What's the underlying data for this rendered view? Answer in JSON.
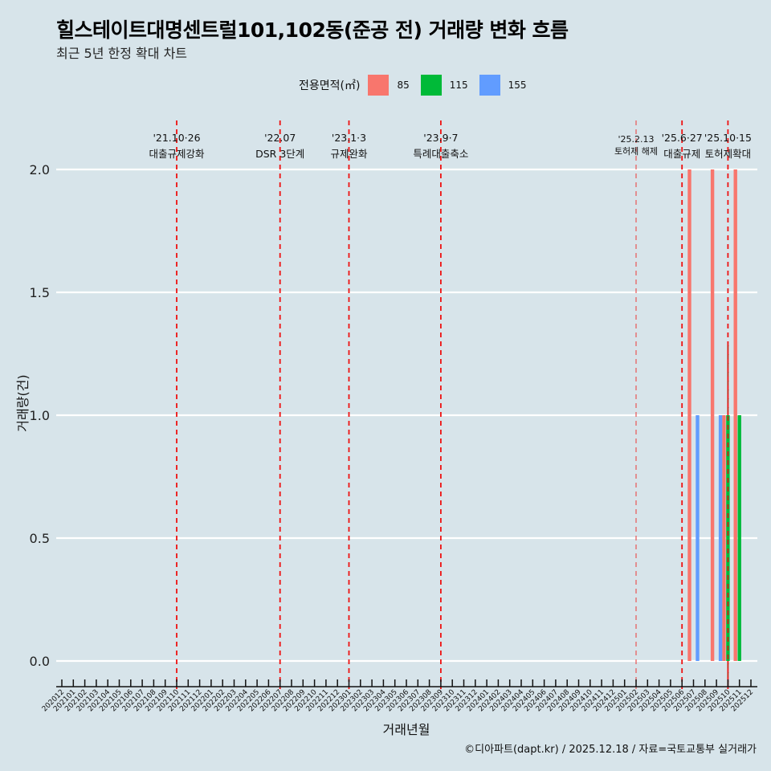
{
  "title": "힐스테이트대명센트럴101,102동(준공 전) 거래량 변화 흐름",
  "subtitle": "최근 5년 한정 확대 차트",
  "caption": "©디아파트(dapt.kr) / 2025.12.18 / 자료=국토교통부 실거래가",
  "legend": {
    "title": "전용면적(㎡)",
    "items": [
      {
        "label": "85",
        "color": "#F8766D"
      },
      {
        "label": "115",
        "color": "#00BA38"
      },
      {
        "label": "155",
        "color": "#619CFF"
      }
    ]
  },
  "chart_data": {
    "type": "bar",
    "title": "힐스테이트대명센트럴101,102동(준공 전) 거래량 변화 흐름",
    "xlabel": "거래년월",
    "ylabel": "거래량(건)",
    "ylim": [
      0,
      2
    ],
    "yticks": [
      "0.0",
      "0.5",
      "1.0",
      "1.5",
      "2.0"
    ],
    "ytick_values": [
      0,
      0.5,
      1,
      1.5,
      2
    ],
    "categories": [
      "202012",
      "202101",
      "202102",
      "202103",
      "202104",
      "202105",
      "202106",
      "202107",
      "202108",
      "202109",
      "202110",
      "202111",
      "202112",
      "202201",
      "202202",
      "202203",
      "202204",
      "202205",
      "202206",
      "202207",
      "202208",
      "202209",
      "202210",
      "202211",
      "202212",
      "202301",
      "202302",
      "202303",
      "202304",
      "202305",
      "202306",
      "202307",
      "202308",
      "202309",
      "202310",
      "202311",
      "202312",
      "202401",
      "202402",
      "202403",
      "202404",
      "202405",
      "202406",
      "202407",
      "202408",
      "202409",
      "202410",
      "202411",
      "202412",
      "202501",
      "202502",
      "202503",
      "202504",
      "202505",
      "202506",
      "202507",
      "202508",
      "202509",
      "202510",
      "202511",
      "202512"
    ],
    "series": [
      {
        "name": "85",
        "points": [
          {
            "x": "202507",
            "y": 2
          },
          {
            "x": "202509",
            "y": 2
          },
          {
            "x": "202510",
            "y": 1
          },
          {
            "x": "202511",
            "y": 2
          }
        ]
      },
      {
        "name": "115",
        "points": [
          {
            "x": "202510",
            "y": 1
          },
          {
            "x": "202511",
            "y": 1
          }
        ]
      },
      {
        "name": "155",
        "points": [
          {
            "x": "202507",
            "y": 1
          },
          {
            "x": "202509",
            "y": 1
          }
        ]
      }
    ],
    "annotations": [
      {
        "x": "202110",
        "date": "'21.10·26",
        "text": "대출규제강화"
      },
      {
        "x": "202207",
        "date": "'22.07",
        "text": "DSR 3단계"
      },
      {
        "x": "202301",
        "date": "'23.1·3",
        "text": "규제완화"
      },
      {
        "x": "202309",
        "date": "'23.9·7",
        "text": "특례대출축소"
      },
      {
        "x": "202502",
        "date": "'25.2.13",
        "text": "토허제 해제",
        "small": true
      },
      {
        "x": "202506",
        "date": "'25.6·27",
        "text": "대출규제"
      },
      {
        "x": "202510",
        "date": "'25.10·15",
        "text": "토허제확대"
      }
    ],
    "grid": true,
    "legend_position": "top"
  }
}
